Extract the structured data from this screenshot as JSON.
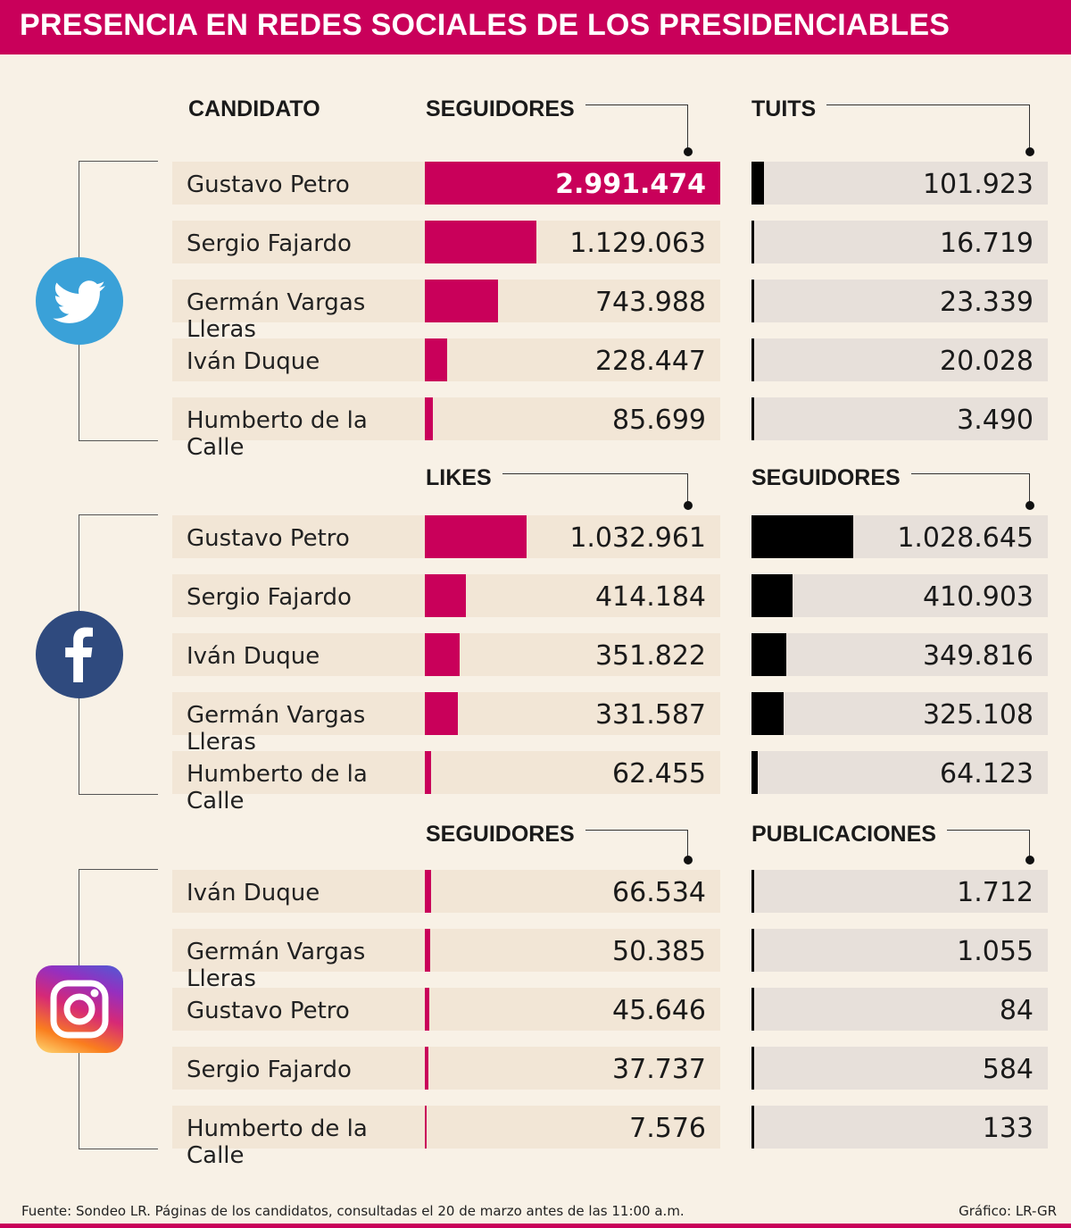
{
  "title": "PRESENCIA EN REDES SOCIALES DE LOS PRESIDENCIABLES",
  "colors": {
    "accent": "#c9005a",
    "bar_left": "#c9005a",
    "bar_right": "#000000",
    "background": "#f8f1e6"
  },
  "candidate_header": "CANDIDATO",
  "chart_data": [
    {
      "type": "bar",
      "network": "twitter",
      "icon": "twitter-icon",
      "left_metric": "SEGUIDORES",
      "right_metric": "TUITS",
      "categories": [
        "Gustavo Petro",
        "Sergio Fajardo",
        "Germán Vargas Lleras",
        "Iván Duque",
        "Humberto de la Calle"
      ],
      "series": [
        {
          "name": "SEGUIDORES",
          "values": [
            2991474,
            1129063,
            743988,
            228447,
            85699
          ],
          "labels": [
            "2.991.474",
            "1.129.063",
            "743.988",
            "228.447",
            "85.699"
          ]
        },
        {
          "name": "TUITS",
          "values": [
            101923,
            16719,
            23339,
            20028,
            3490
          ],
          "labels": [
            "101.923",
            "16.719",
            "23.339",
            "20.028",
            "3.490"
          ]
        }
      ]
    },
    {
      "type": "bar",
      "network": "facebook",
      "icon": "facebook-icon",
      "left_metric": "LIKES",
      "right_metric": "SEGUIDORES",
      "categories": [
        "Gustavo Petro",
        "Sergio Fajardo",
        "Iván Duque",
        "Germán Vargas Lleras",
        "Humberto de la Calle"
      ],
      "series": [
        {
          "name": "LIKES",
          "values": [
            1032961,
            414184,
            351822,
            331587,
            62455
          ],
          "labels": [
            "1.032.961",
            "414.184",
            "351.822",
            "331.587",
            "62.455"
          ]
        },
        {
          "name": "SEGUIDORES",
          "values": [
            1028645,
            410903,
            349816,
            325108,
            64123
          ],
          "labels": [
            "1.028.645",
            "410.903",
            "349.816",
            "325.108",
            "64.123"
          ]
        }
      ]
    },
    {
      "type": "bar",
      "network": "instagram",
      "icon": "instagram-icon",
      "left_metric": "SEGUIDORES",
      "right_metric": "PUBLICACIONES",
      "categories": [
        "Iván Duque",
        "Germán Vargas Lleras",
        "Gustavo Petro",
        "Sergio Fajardo",
        "Humberto de la Calle"
      ],
      "series": [
        {
          "name": "SEGUIDORES",
          "values": [
            66534,
            50385,
            45646,
            37737,
            7576
          ],
          "labels": [
            "66.534",
            "50.385",
            "45.646",
            "37.737",
            "7.576"
          ]
        },
        {
          "name": "PUBLICACIONES",
          "values": [
            1712,
            1055,
            84,
            584,
            133
          ],
          "labels": [
            "1.712",
            "1.055",
            "84",
            "584",
            "133"
          ]
        }
      ]
    }
  ],
  "scale": {
    "left_max": 2991474,
    "right_max": 2991474
  },
  "footer": {
    "source": "Fuente: Sondeo LR. Páginas de los candidatos, consultadas el 20 de marzo antes de las 11:00 a.m.",
    "credit": "Gráfico: LR-GR"
  }
}
